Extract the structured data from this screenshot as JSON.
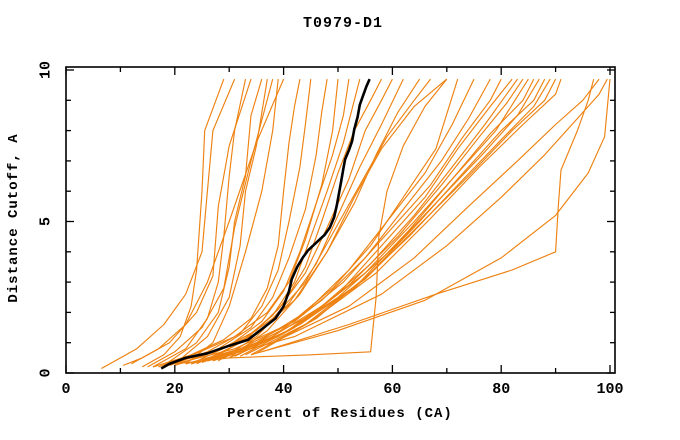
{
  "chart_data": {
    "type": "line",
    "title": "T0979-D1",
    "xlabel": "Percent of Residues (CA)",
    "ylabel": "Distance Cutoff, A",
    "xlim": [
      0,
      100
    ],
    "ylim": [
      0,
      10
    ],
    "x_major_ticks": [
      0,
      20,
      40,
      60,
      80,
      100
    ],
    "x_minor_step": 10,
    "y_major_ticks": [
      0,
      5,
      10
    ],
    "y_minor_step": 1,
    "grid": false,
    "legend": "none",
    "colors": {
      "models": "#ee8211",
      "highlight": "#000000"
    },
    "highlight_series": {
      "name": "highlighted-model",
      "points": [
        [
          17.5,
          0.15
        ],
        [
          19,
          0.3
        ],
        [
          22,
          0.5
        ],
        [
          26,
          0.65
        ],
        [
          30,
          0.9
        ],
        [
          33.5,
          1.1
        ],
        [
          36,
          1.45
        ],
        [
          38.5,
          1.8
        ],
        [
          40,
          2.2
        ],
        [
          41,
          2.7
        ],
        [
          41.5,
          3.1
        ],
        [
          42.5,
          3.5
        ],
        [
          43.5,
          3.8
        ],
        [
          44.5,
          4.05
        ],
        [
          46,
          4.3
        ],
        [
          47.5,
          4.55
        ],
        [
          48.5,
          4.8
        ],
        [
          49.3,
          5.15
        ],
        [
          49.8,
          5.55
        ],
        [
          50.2,
          5.95
        ],
        [
          50.6,
          6.35
        ],
        [
          51,
          6.75
        ],
        [
          51.3,
          7.05
        ],
        [
          52,
          7.35
        ],
        [
          52.6,
          7.65
        ],
        [
          53,
          8.05
        ],
        [
          53.6,
          8.45
        ],
        [
          54,
          8.85
        ],
        [
          54.6,
          9.15
        ],
        [
          55.2,
          9.45
        ],
        [
          55.8,
          9.7
        ]
      ]
    },
    "models": [
      [
        [
          6.5,
          0.15
        ],
        [
          13,
          0.8
        ],
        [
          18,
          1.6
        ],
        [
          22,
          2.6
        ],
        [
          25,
          4
        ],
        [
          26,
          6
        ],
        [
          27,
          8
        ],
        [
          31,
          9.7
        ]
      ],
      [
        [
          14,
          0.2
        ],
        [
          18,
          0.6
        ],
        [
          21,
          1.2
        ],
        [
          23,
          2.2
        ],
        [
          24,
          3.4
        ],
        [
          25,
          6
        ],
        [
          25.5,
          8
        ],
        [
          29,
          9.7
        ]
      ],
      [
        [
          16,
          0.2
        ],
        [
          22,
          0.8
        ],
        [
          26,
          1.8
        ],
        [
          28,
          3
        ],
        [
          29,
          4.5
        ],
        [
          30,
          6.5
        ],
        [
          31,
          8
        ],
        [
          33,
          9.7
        ]
      ],
      [
        [
          10.5,
          0.25
        ],
        [
          14,
          0.5
        ],
        [
          19,
          1
        ],
        [
          24,
          2
        ],
        [
          27,
          3.2
        ],
        [
          28,
          5.5
        ],
        [
          30,
          7.5
        ],
        [
          34,
          9.7
        ]
      ],
      [
        [
          18,
          0.25
        ],
        [
          24,
          1
        ],
        [
          28,
          2
        ],
        [
          30,
          3.5
        ],
        [
          31,
          5
        ],
        [
          33,
          6.5
        ],
        [
          34,
          8.5
        ],
        [
          36,
          9.7
        ]
      ],
      [
        [
          20,
          0.3
        ],
        [
          26,
          1.2
        ],
        [
          30,
          2.5
        ],
        [
          32,
          4.2
        ],
        [
          33,
          6
        ],
        [
          35,
          7.5
        ],
        [
          37,
          9.7
        ]
      ],
      [
        [
          15,
          0.2
        ],
        [
          20,
          0.7
        ],
        [
          25,
          1.5
        ],
        [
          29,
          2.8
        ],
        [
          31,
          4.8
        ],
        [
          34,
          7
        ],
        [
          38,
          9.7
        ]
      ],
      [
        [
          22,
          0.3
        ],
        [
          27,
          1
        ],
        [
          30,
          2.2
        ],
        [
          33,
          4
        ],
        [
          36,
          6
        ],
        [
          38,
          8
        ],
        [
          39,
          9.7
        ]
      ],
      [
        [
          12,
          0.3
        ],
        [
          17,
          0.8
        ],
        [
          22,
          1.6
        ],
        [
          26,
          3
        ],
        [
          30,
          5
        ],
        [
          35,
          7.6
        ],
        [
          40,
          9.7
        ]
      ],
      [
        [
          17,
          0.2
        ],
        [
          23,
          0.6
        ],
        [
          29,
          1.1
        ],
        [
          34,
          1.8
        ],
        [
          37,
          2.8
        ],
        [
          39,
          4.2
        ],
        [
          40,
          6
        ],
        [
          41,
          7.6
        ],
        [
          42,
          8.8
        ],
        [
          43,
          9.7
        ]
      ],
      [
        [
          19,
          0.25
        ],
        [
          26,
          0.7
        ],
        [
          32,
          1.3
        ],
        [
          36,
          2.2
        ],
        [
          39,
          3.4
        ],
        [
          41,
          5
        ],
        [
          43,
          6.8
        ],
        [
          44,
          8.2
        ],
        [
          45,
          9.7
        ]
      ],
      [
        [
          21,
          0.3
        ],
        [
          28,
          0.8
        ],
        [
          34,
          1.5
        ],
        [
          38,
          2.5
        ],
        [
          41,
          3.8
        ],
        [
          44,
          5.4
        ],
        [
          46,
          7.2
        ],
        [
          47,
          8.6
        ],
        [
          48,
          9.7
        ]
      ],
      [
        [
          16,
          0.2
        ],
        [
          24,
          0.65
        ],
        [
          31,
          1.2
        ],
        [
          37,
          2
        ],
        [
          41,
          3
        ],
        [
          44,
          4.4
        ],
        [
          47,
          6.2
        ],
        [
          49,
          8
        ],
        [
          50,
          9.7
        ]
      ],
      [
        [
          23,
          0.3
        ],
        [
          30,
          0.9
        ],
        [
          36,
          1.7
        ],
        [
          40,
          2.7
        ],
        [
          43,
          4
        ],
        [
          46,
          5.6
        ],
        [
          49,
          7.2
        ],
        [
          51,
          8.5
        ],
        [
          52,
          9.7
        ]
      ],
      [
        [
          25,
          0.35
        ],
        [
          32,
          1
        ],
        [
          38,
          1.9
        ],
        [
          42,
          3
        ],
        [
          45,
          4.5
        ],
        [
          48,
          6
        ],
        [
          51,
          7.6
        ],
        [
          53,
          9
        ],
        [
          54,
          9.7
        ]
      ],
      [
        [
          20,
          0.25
        ],
        [
          28,
          0.75
        ],
        [
          35,
          1.4
        ],
        [
          40,
          2.3
        ],
        [
          44,
          3.5
        ],
        [
          47,
          5
        ],
        [
          50,
          6.6
        ],
        [
          53,
          8
        ],
        [
          56,
          9
        ],
        [
          58,
          9.7
        ]
      ],
      [
        [
          26,
          0.4
        ],
        [
          33,
          1.1
        ],
        [
          39,
          2.1
        ],
        [
          44,
          3.3
        ],
        [
          48,
          4.8
        ],
        [
          52,
          6.4
        ],
        [
          55,
          8
        ],
        [
          58,
          9
        ],
        [
          60,
          9.7
        ]
      ],
      [
        [
          28,
          0.4
        ],
        [
          35,
          1.2
        ],
        [
          41,
          2.3
        ],
        [
          46,
          3.6
        ],
        [
          50,
          5.2
        ],
        [
          54,
          6.8
        ],
        [
          58,
          8.2
        ],
        [
          62,
          9.7
        ]
      ],
      [
        [
          30,
          0.5
        ],
        [
          37,
          1.4
        ],
        [
          43,
          2.6
        ],
        [
          48,
          4
        ],
        [
          53,
          5.6
        ],
        [
          57,
          7.2
        ],
        [
          61,
          8.6
        ],
        [
          65,
          9.7
        ]
      ],
      [
        [
          24,
          0.3
        ],
        [
          31,
          0.9
        ],
        [
          38,
          1.8
        ],
        [
          44,
          3
        ],
        [
          49,
          4.6
        ],
        [
          54,
          6.2
        ],
        [
          59,
          7.8
        ],
        [
          64,
          9
        ],
        [
          67,
          9.7
        ]
      ],
      [
        [
          18,
          0.25
        ],
        [
          27,
          0.7
        ],
        [
          35,
          1.3
        ],
        [
          42,
          2.4
        ],
        [
          48,
          4
        ],
        [
          53,
          5.8
        ],
        [
          58,
          7.4
        ],
        [
          64,
          8.8
        ],
        [
          70,
          9.7
        ]
      ],
      [
        [
          22,
          0.3
        ],
        [
          32,
          0.8
        ],
        [
          41,
          1.6
        ],
        [
          49,
          2.8
        ],
        [
          56,
          4.2
        ],
        [
          62,
          5.8
        ],
        [
          68,
          7.4
        ],
        [
          72,
          9.7
        ]
      ],
      [
        [
          25,
          0.35
        ],
        [
          35,
          1
        ],
        [
          44,
          2
        ],
        [
          52,
          3.4
        ],
        [
          59,
          5
        ],
        [
          66,
          6.6
        ],
        [
          71,
          8.2
        ],
        [
          75,
          9.7
        ]
      ],
      [
        [
          28,
          0.45
        ],
        [
          38,
          1.2
        ],
        [
          47,
          2.4
        ],
        [
          55,
          3.8
        ],
        [
          62,
          5.4
        ],
        [
          69,
          7
        ],
        [
          74,
          8.4
        ],
        [
          78,
          9.7
        ]
      ],
      [
        [
          20,
          0.3
        ],
        [
          31,
          0.8
        ],
        [
          42,
          1.7
        ],
        [
          51,
          3
        ],
        [
          59,
          4.6
        ],
        [
          67,
          6.2
        ],
        [
          73,
          7.8
        ],
        [
          78,
          9
        ],
        [
          80,
          9.7
        ]
      ],
      [
        [
          30,
          0.5
        ],
        [
          40,
          1.3
        ],
        [
          50,
          2.6
        ],
        [
          58,
          4.2
        ],
        [
          66,
          5.8
        ],
        [
          72,
          7.4
        ],
        [
          78,
          8.8
        ],
        [
          82,
          9.7
        ]
      ],
      [
        [
          26,
          0.4
        ],
        [
          37,
          1.1
        ],
        [
          47,
          2.2
        ],
        [
          56,
          3.6
        ],
        [
          64,
          5.2
        ],
        [
          71,
          6.8
        ],
        [
          77,
          8.2
        ],
        [
          83,
          9.7
        ]
      ],
      [
        [
          32,
          0.55
        ],
        [
          42,
          1.5
        ],
        [
          52,
          2.9
        ],
        [
          61,
          4.5
        ],
        [
          69,
          6.2
        ],
        [
          76,
          7.8
        ],
        [
          81,
          8.9
        ],
        [
          84,
          9.7
        ]
      ],
      [
        [
          23,
          0.3
        ],
        [
          34,
          0.9
        ],
        [
          45,
          1.9
        ],
        [
          55,
          3.3
        ],
        [
          64,
          5
        ],
        [
          72,
          6.6
        ],
        [
          79,
          8
        ],
        [
          85,
          9.7
        ]
      ],
      [
        [
          34,
          0.6
        ],
        [
          44,
          1.6
        ],
        [
          54,
          3
        ],
        [
          63,
          4.7
        ],
        [
          71,
          6.4
        ],
        [
          78,
          7.9
        ],
        [
          84,
          9
        ],
        [
          86,
          9.7
        ]
      ],
      [
        [
          27,
          0.4
        ],
        [
          39,
          1.2
        ],
        [
          50,
          2.5
        ],
        [
          60,
          4.1
        ],
        [
          69,
          5.8
        ],
        [
          77,
          7.3
        ],
        [
          83,
          8.5
        ],
        [
          87,
          9.7
        ]
      ],
      [
        [
          35,
          0.65
        ],
        [
          46,
          1.8
        ],
        [
          56,
          3.3
        ],
        [
          65,
          5
        ],
        [
          73,
          6.6
        ],
        [
          80,
          8
        ],
        [
          86,
          9
        ],
        [
          88,
          9.7
        ]
      ],
      [
        [
          29,
          0.5
        ],
        [
          41,
          1.4
        ],
        [
          53,
          2.8
        ],
        [
          63,
          4.5
        ],
        [
          72,
          6.2
        ],
        [
          80,
          7.7
        ],
        [
          86,
          8.8
        ],
        [
          89,
          9.7
        ]
      ],
      [
        [
          31,
          0.55
        ],
        [
          43,
          1.6
        ],
        [
          55,
          3.1
        ],
        [
          65,
          4.9
        ],
        [
          74,
          6.5
        ],
        [
          82,
          8
        ],
        [
          88,
          9
        ],
        [
          90,
          9.7
        ]
      ],
      [
        [
          33,
          0.6
        ],
        [
          45,
          1.7
        ],
        [
          57,
          3.3
        ],
        [
          67,
          5.1
        ],
        [
          76,
          6.8
        ],
        [
          84,
          8.2
        ],
        [
          90,
          9.2
        ],
        [
          91,
          9.7
        ]
      ],
      [
        [
          20,
          0.3
        ],
        [
          30,
          0.5
        ],
        [
          45,
          0.6
        ],
        [
          56,
          0.7
        ],
        [
          57,
          2.5
        ],
        [
          57.5,
          4.5
        ],
        [
          59,
          6
        ],
        [
          62,
          7.5
        ],
        [
          66,
          8.8
        ],
        [
          70,
          9.7
        ]
      ],
      [
        [
          24,
          0.35
        ],
        [
          38,
          1
        ],
        [
          52,
          2.2
        ],
        [
          64,
          3.8
        ],
        [
          74,
          5.5
        ],
        [
          83,
          7
        ],
        [
          90,
          8.2
        ],
        [
          95,
          9
        ],
        [
          98,
          9.7
        ]
      ],
      [
        [
          26,
          0.4
        ],
        [
          42,
          1.2
        ],
        [
          58,
          2.6
        ],
        [
          70,
          4.2
        ],
        [
          80,
          5.8
        ],
        [
          88,
          7.2
        ],
        [
          94,
          8.4
        ],
        [
          98,
          9.2
        ],
        [
          99.5,
          9.7
        ]
      ],
      [
        [
          36,
          0.7
        ],
        [
          52,
          1.6
        ],
        [
          68,
          2.6
        ],
        [
          82,
          3.4
        ],
        [
          90,
          4
        ],
        [
          90.5,
          5.5
        ],
        [
          91,
          6.7
        ],
        [
          94,
          8
        ],
        [
          96,
          9
        ],
        [
          97,
          9.7
        ]
      ],
      [
        [
          34,
          0.6
        ],
        [
          50,
          1.4
        ],
        [
          66,
          2.4
        ],
        [
          80,
          3.8
        ],
        [
          90,
          5.2
        ],
        [
          96,
          6.6
        ],
        [
          99,
          7.8
        ],
        [
          100,
          9.7
        ]
      ]
    ]
  }
}
